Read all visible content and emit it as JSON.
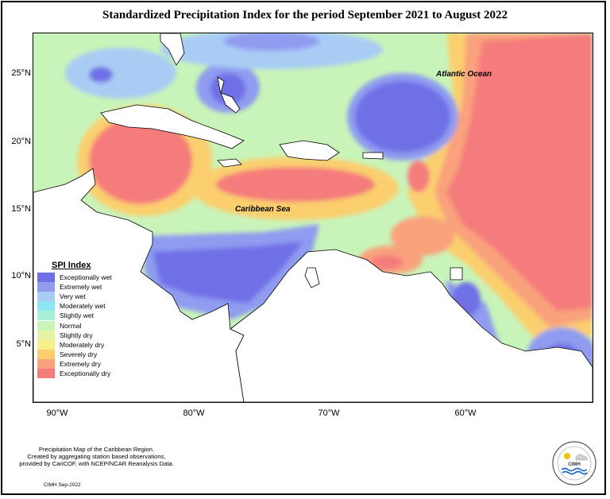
{
  "title": "Standardized Precipitation Index for the period September 2021 to August 2022",
  "map": {
    "lat_ticks": [
      "25°N",
      "20°N",
      "15°N",
      "10°N",
      "5°N"
    ],
    "lon_ticks": [
      "90°W",
      "80°W",
      "70°W",
      "60°W"
    ],
    "labels": {
      "atlantic": "Atlantic Ocean",
      "caribbean": "Caribbean Sea"
    },
    "colors": {
      "exceptionally_wet": "#6f6fe6",
      "extremely_wet": "#8f9cf0",
      "very_wet": "#a9ccf5",
      "moderately_wet": "#8ee6f0",
      "slightly_wet": "#a9f0d8",
      "normal": "#c9f4b9",
      "slightly_dry": "#e7f3a4",
      "moderately_dry": "#f7f08a",
      "severely_dry": "#fbcf6e",
      "extremely_dry": "#f9a27c",
      "exceptionally_dry": "#f57c7c",
      "land": "#ffffff"
    }
  },
  "legend": {
    "title": "SPI Index",
    "items": [
      {
        "label": "Exceptionally wet",
        "color": "#6f6fe6"
      },
      {
        "label": "Extremely wet",
        "color": "#8f9cf0"
      },
      {
        "label": "Very wet",
        "color": "#a9ccf5"
      },
      {
        "label": "Moderately wet",
        "color": "#8ee6f0"
      },
      {
        "label": "Slightly wet",
        "color": "#a9f0d8"
      },
      {
        "label": "Normal",
        "color": "#c9f4b9"
      },
      {
        "label": "Slightly dry",
        "color": "#e7f3a4"
      },
      {
        "label": "Moderately dry",
        "color": "#f7f08a"
      },
      {
        "label": "Severely dry",
        "color": "#fbcf6e"
      },
      {
        "label": "Extremely dry",
        "color": "#f9a27c"
      },
      {
        "label": "Exceptionally dry",
        "color": "#f57c7c"
      }
    ]
  },
  "credits": {
    "line1": "Precipitation Map of the Caribbean Region.",
    "line2": "Created by aggregating station based observations,",
    "line3": "provided by CariCOF, with NCEP/NCAR Reanalysis Data.",
    "footer": "CIMH Sep-2022"
  },
  "logo": {
    "text": "CIMH"
  }
}
